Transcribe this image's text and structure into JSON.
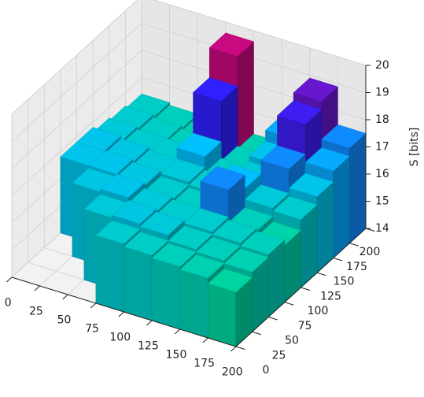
{
  "chart_data": {
    "type": "bar3d",
    "zlabel": "S [bits]",
    "xbins": [
      0,
      25,
      50,
      75,
      100,
      125,
      150,
      175,
      200
    ],
    "ybins": [
      0,
      25,
      50,
      75,
      100,
      125,
      150,
      175,
      200
    ],
    "values": [
      [
        null,
        null,
        null,
        16.8,
        16.8,
        16.6,
        16.5,
        16.4
      ],
      [
        null,
        null,
        16.7,
        16.8,
        16.7,
        16.5,
        16.4,
        16.3
      ],
      [
        null,
        16.6,
        16.8,
        16.7,
        16.6,
        16.5,
        16.3,
        16.2
      ],
      [
        16.5,
        16.7,
        16.6,
        16.5,
        16.6,
        17.0,
        18.5,
        19.6
      ],
      [
        16.4,
        16.6,
        16.5,
        16.4,
        16.5,
        16.4,
        16.3,
        16.2
      ],
      [
        16.3,
        16.4,
        16.5,
        17.5,
        17.0,
        16.6,
        16.8,
        17.2
      ],
      [
        16.2,
        16.3,
        16.4,
        16.3,
        16.6,
        17.5,
        18.6,
        18.9
      ],
      [
        16.0,
        16.2,
        16.3,
        16.1,
        16.5,
        16.8,
        17.2,
        17.5
      ]
    ],
    "colormap": [
      "#00ffa0",
      "#00e070",
      "#00c0ff",
      "#3020ff",
      "#ff0050"
    ],
    "xlim": [
      0,
      200
    ],
    "ylim": [
      0,
      200
    ],
    "zlim": [
      14,
      20
    ],
    "xticks": [
      0,
      25,
      50,
      75,
      100,
      125,
      150,
      175,
      200
    ],
    "yticks": [
      0,
      25,
      50,
      75,
      100,
      125,
      150,
      175,
      200
    ],
    "zticks": [
      14,
      15,
      16,
      17,
      18,
      19,
      20
    ],
    "grid": true
  }
}
